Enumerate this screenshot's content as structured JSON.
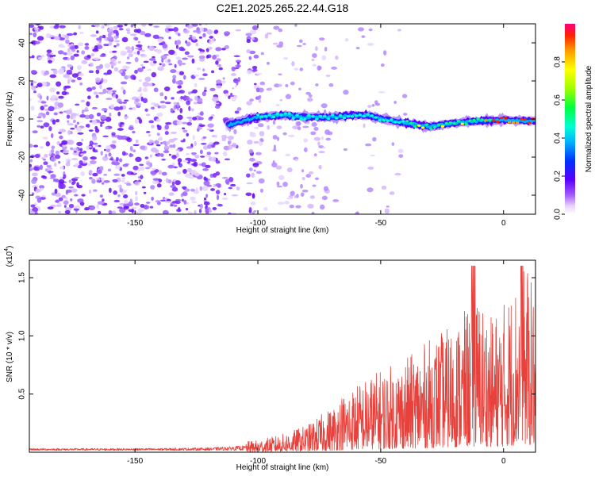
{
  "figure": {
    "title": "C2E1.2025.265.22.44.G18"
  },
  "chart_data": [
    {
      "type": "heatmap",
      "xlabel": "Height of straight line (km)",
      "ylabel": "Frequency (Hz)",
      "xlim": [
        -193,
        13
      ],
      "ylim": [
        -50,
        50
      ],
      "xticks": [
        -150,
        -100,
        -50,
        0
      ],
      "yticks": [
        -40,
        -20,
        0,
        20,
        40
      ],
      "colorbar": {
        "label": "Normalized spectral amplitude",
        "range": [
          0,
          1
        ],
        "ticks": [
          0.0,
          0.2,
          0.4,
          0.6,
          0.8
        ]
      },
      "ridge": {
        "description_points_x": [
          -112,
          -100,
          -90,
          -80,
          -70,
          -60,
          -55,
          -50,
          -40,
          -30,
          -20,
          -10,
          0,
          10,
          13
        ],
        "description_points_y": [
          -3,
          1,
          2,
          1,
          1,
          2,
          2,
          0,
          -2,
          -4,
          -2,
          -1,
          -0.5,
          -1,
          -1
        ]
      }
    },
    {
      "type": "line",
      "xlabel": "Height of straight line (km)",
      "ylabel": "SNR (10 * v/v)",
      "scale_label": "(x10",
      "scale_exp": "4",
      "xlim": [
        -193,
        13
      ],
      "ylim": [
        0,
        1.65
      ],
      "xticks": [
        -150,
        -100,
        -50,
        0
      ],
      "yticks": [
        0.5,
        1.0,
        1.5
      ],
      "series_color": "#e8403a",
      "envelope": {
        "x": [
          -193,
          -150,
          -120,
          -110,
          -100,
          -90,
          -80,
          -70,
          -65,
          -60,
          -50,
          -40,
          -30,
          -20,
          -15,
          -10,
          -5,
          0,
          5,
          10,
          13
        ],
        "y": [
          0.03,
          0.03,
          0.04,
          0.06,
          0.08,
          0.12,
          0.18,
          0.3,
          0.4,
          0.45,
          0.55,
          0.62,
          0.75,
          0.85,
          0.95,
          1.05,
          0.9,
          1.0,
          1.15,
          1.25,
          1.0
        ]
      }
    }
  ]
}
